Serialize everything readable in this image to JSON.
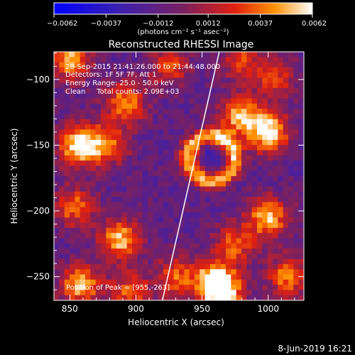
{
  "chart_data": {
    "type": "heatmap",
    "title": "Reconstructed RHESSI Image",
    "xlabel": "Heliocentric X (arcsec)",
    "ylabel": "Heliocentric Y (arcsec)",
    "xlim": [
      838,
      1027
    ],
    "ylim": [
      -268,
      -79
    ],
    "x_ticks": [
      850,
      900,
      950,
      1000
    ],
    "y_ticks": [
      -100,
      -150,
      -200,
      -250
    ],
    "colorbar": {
      "min": -0.0062,
      "max": 0.0062,
      "tick_values": [
        -0.0062,
        -0.0037,
        -0.0012,
        0.0012,
        0.0037,
        0.0062
      ],
      "tick_labels": [
        "−0.0062",
        "−0.0037",
        "−0.0012",
        "0.0012",
        "0.0037",
        "0.0062"
      ],
      "unit_label": "(photons cm⁻² s⁻¹ asec⁻²)"
    },
    "annotations": [
      "28-Sep-2015 21:41:26.000 to 21:44:48.000",
      "Detectors: 1F 5F 7F, Att 1",
      "Energy Range: 25.0 - 50.0 keV",
      "Clean     Total counts: 2.09E+03"
    ],
    "peak_label": "Position of Peak = [955,-263]",
    "peak": [
      955,
      -263
    ],
    "limb_line": [
      [
        920,
        -268
      ],
      [
        963,
        -79
      ]
    ],
    "blobs": [
      {
        "x": 850,
        "y": -85,
        "amp": 0.8
      },
      {
        "x": 856,
        "y": -150,
        "amp": 0.95
      },
      {
        "x": 853,
        "y": -197,
        "amp": 0.65
      },
      {
        "x": 858,
        "y": -256,
        "amp": 0.85
      },
      {
        "x": 892,
        "y": -118,
        "amp": 0.75
      },
      {
        "x": 878,
        "y": -150,
        "amp": 0.7
      },
      {
        "x": 888,
        "y": -222,
        "amp": 0.85
      },
      {
        "x": 895,
        "y": -262,
        "amp": 0.6
      },
      {
        "x": 925,
        "y": -90,
        "amp": 0.55
      },
      {
        "x": 930,
        "y": -250,
        "amp": 0.6
      },
      {
        "x": 958,
        "y": -252,
        "amp": 0.7
      },
      {
        "x": 965,
        "y": -262,
        "amp": 1.0
      },
      {
        "x": 978,
        "y": -128,
        "amp": 0.8
      },
      {
        "x": 1000,
        "y": -140,
        "amp": 1.0
      },
      {
        "x": 1005,
        "y": -100,
        "amp": 0.55
      },
      {
        "x": 1000,
        "y": -205,
        "amp": 0.85
      },
      {
        "x": 1015,
        "y": -250,
        "amp": 0.7
      },
      {
        "x": 975,
        "y": -225,
        "amp": 0.6
      },
      {
        "x": 980,
        "y": -85,
        "amp": 0.5
      }
    ],
    "ring": {
      "x": 957,
      "y": -160,
      "r": 17,
      "amp": 0.95
    }
  },
  "footer": {
    "date": "8-Jun-2019 16:21"
  }
}
